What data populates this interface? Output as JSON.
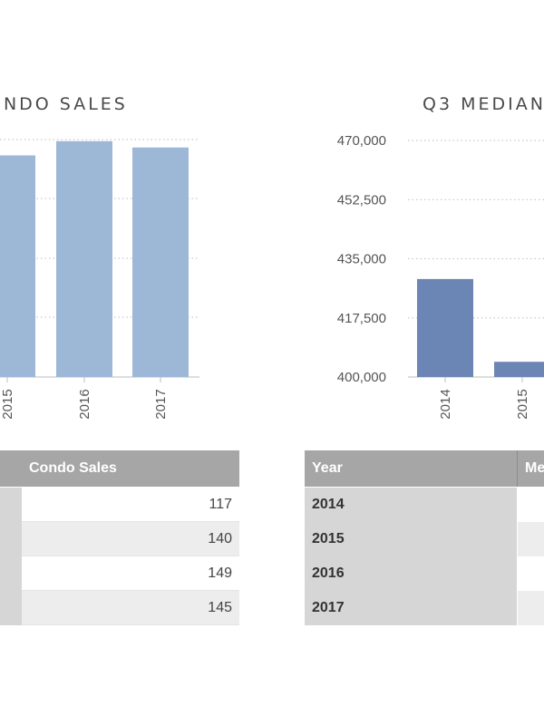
{
  "left_chart": {
    "title": "ONDO SALES"
  },
  "right_chart": {
    "title": "Q3 MEDIAN"
  },
  "chart_data": [
    {
      "type": "bar",
      "title": "ONDO SALES",
      "categories": [
        "2015",
        "2016",
        "2017"
      ],
      "values": [
        140,
        149,
        145
      ],
      "ylim": [
        0,
        150
      ],
      "grid": true,
      "color": "#9db8d7"
    },
    {
      "type": "bar",
      "title": "Q3 MEDIAN",
      "categories": [
        "2014",
        "2015"
      ],
      "values": [
        429000,
        404500
      ],
      "yticks": [
        "400,000",
        "417,500",
        "435,000",
        "452,500",
        "470,000"
      ],
      "ylim": [
        400000,
        470000
      ],
      "grid": true,
      "color": "#6b86b5"
    }
  ],
  "left_table": {
    "header": "Condo Sales",
    "values": [
      "117",
      "140",
      "149",
      "145"
    ]
  },
  "right_table": {
    "header_year": "Year",
    "header_value": "Me",
    "years": [
      "2014",
      "2015",
      "2016",
      "2017"
    ]
  },
  "colors": {
    "header_bg": "#a6a6a6",
    "year_bg": "#d6d6d6",
    "stripe": "#ededed"
  }
}
